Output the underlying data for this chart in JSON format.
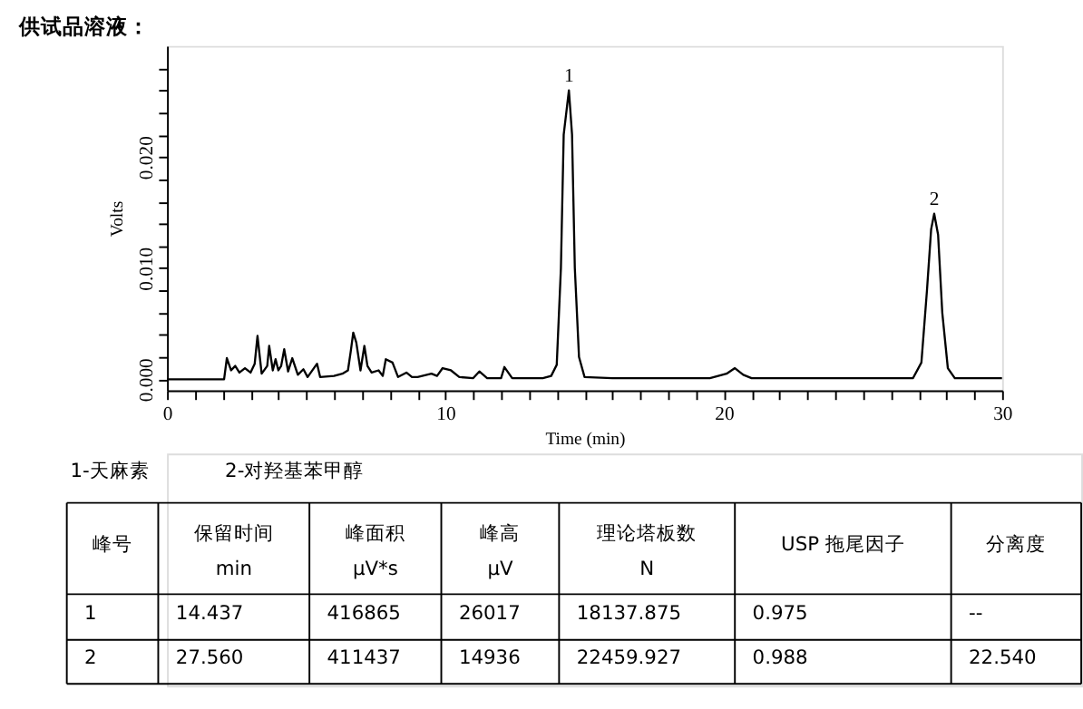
{
  "chart_data": {
    "type": "line",
    "title": "供试品溶液：",
    "xlabel": "Time (min)",
    "ylabel": "Volts",
    "x": [
      0,
      2.0,
      2.05,
      2.15,
      2.3,
      2.45,
      2.6,
      2.8,
      3.0,
      3.15,
      3.25,
      3.4,
      3.6,
      3.67,
      3.8,
      3.9,
      4.0,
      4.1,
      4.21,
      4.35,
      4.5,
      4.7,
      4.9,
      5.05,
      5.39,
      5.5,
      6.0,
      6.3,
      6.5,
      6.6,
      6.69,
      6.8,
      6.95,
      7.09,
      7.2,
      7.35,
      7.6,
      7.75,
      7.86,
      8.1,
      8.3,
      8.6,
      8.8,
      9.0,
      9.5,
      9.7,
      9.9,
      10.2,
      10.5,
      11.0,
      11.22,
      11.5,
      12.0,
      12.12,
      12.4,
      13.5,
      13.8,
      14.0,
      14.15,
      14.25,
      14.437,
      14.55,
      14.65,
      14.8,
      15.0,
      16.0,
      17.0,
      19.5,
      20.1,
      20.4,
      20.7,
      21.0,
      23.0,
      26.8,
      27.1,
      27.3,
      27.45,
      27.56,
      27.7,
      27.85,
      28.05,
      28.3,
      30
    ],
    "series": [
      {
        "color": "#000000",
        "values": [
          0,
          0,
          0,
          0.0019,
          0.0008,
          0.0012,
          0.0006,
          0.001,
          0.0006,
          0.0014,
          0.0039,
          0.0005,
          0.0012,
          0.003,
          0.0008,
          0.0018,
          0.0008,
          0.0012,
          0.0027,
          0.0007,
          0.0019,
          0.0004,
          0.0009,
          0.0002,
          0.0014,
          0.0002,
          0.0003,
          0.0005,
          0.0008,
          0.0025,
          0.0042,
          0.0033,
          0.0008,
          0.003,
          0.0012,
          0.0006,
          0.0008,
          0.0003,
          0.0018,
          0.0015,
          0.0002,
          0.0006,
          0.0002,
          0.0002,
          0.0005,
          0.0003,
          0.001,
          0.0008,
          0.0002,
          0.0001,
          0.0007,
          0.0001,
          0.0001,
          0.0011,
          0.0001,
          0.0001,
          0.0003,
          0.0013,
          0.01,
          0.022,
          0.026,
          0.022,
          0.01,
          0.002,
          0.0002,
          0.0001,
          0.0001,
          0.0001,
          0.0005,
          0.001,
          0.0004,
          0.0001,
          0.0001,
          0.0001,
          0.0015,
          0.008,
          0.0135,
          0.0149,
          0.013,
          0.006,
          0.001,
          0.0001,
          0.0001
        ]
      }
    ],
    "xlim": [
      0,
      30
    ],
    "ylim": [
      -0.001,
      0.03
    ],
    "xticks": [
      0,
      {
        "value": 1,
        "label": null
      },
      {
        "value": 2,
        "label": null
      },
      {
        "value": 3,
        "label": null
      },
      {
        "value": 4,
        "label": null
      },
      {
        "value": 5,
        "label": null
      },
      {
        "value": 6,
        "label": null
      },
      {
        "value": 7,
        "label": null
      },
      {
        "value": 8,
        "label": null
      },
      {
        "value": 9,
        "label": null
      },
      10,
      {
        "value": 11,
        "label": null
      },
      {
        "value": 12,
        "label": null
      },
      {
        "value": 13,
        "label": null
      },
      {
        "value": 14,
        "label": null
      },
      {
        "value": 15,
        "label": null
      },
      {
        "value": 16,
        "label": null
      },
      {
        "value": 17,
        "label": null
      },
      {
        "value": 18,
        "label": null
      },
      {
        "value": 19,
        "label": null
      },
      20,
      {
        "value": 21,
        "label": null
      },
      {
        "value": 22,
        "label": null
      },
      {
        "value": 23,
        "label": null
      },
      {
        "value": 24,
        "label": null
      },
      {
        "value": 25,
        "label": null
      },
      {
        "value": 26,
        "label": null
      },
      {
        "value": 27,
        "label": null
      },
      {
        "value": 28,
        "label": null
      },
      {
        "value": 29,
        "label": null
      },
      30
    ],
    "yticks": [
      {
        "value": 0,
        "label": "0.000"
      },
      {
        "value": 0.002,
        "label": null
      },
      {
        "value": 0.004,
        "label": null
      },
      {
        "value": 0.006,
        "label": null
      },
      {
        "value": 0.008,
        "label": null
      },
      {
        "value": 0.01,
        "label": "0.010"
      },
      {
        "value": 0.012,
        "label": null
      },
      {
        "value": 0.014,
        "label": null
      },
      {
        "value": 0.016,
        "label": null
      },
      {
        "value": 0.018,
        "label": null
      },
      {
        "value": 0.02,
        "label": "0.020"
      },
      {
        "value": 0.022,
        "label": null
      },
      {
        "value": 0.024,
        "label": null
      },
      {
        "value": 0.026,
        "label": null
      },
      {
        "value": 0.028,
        "label": null
      }
    ],
    "grid": false,
    "marker": "none",
    "line_style": "solid",
    "annotations": [
      {
        "text": "1",
        "x": 14.437,
        "y": 0.026
      },
      {
        "text": "2",
        "x": 27.56,
        "y": 0.0149
      },
      "1-天麻素",
      "2-对羟基苯甲醇",
      "峰号",
      "保留时间\nmin",
      "峰面积\nμV*s",
      "峰高\nμV",
      "理论塔板数\nN",
      "USP 拖尾因子",
      "分离度",
      "1",
      "14.437",
      "416865",
      "26017",
      "18137.875",
      "0.975",
      "--",
      "2",
      "27.560",
      "411437",
      "14936",
      "22459.927",
      "0.988",
      "22.540"
    ]
  }
}
